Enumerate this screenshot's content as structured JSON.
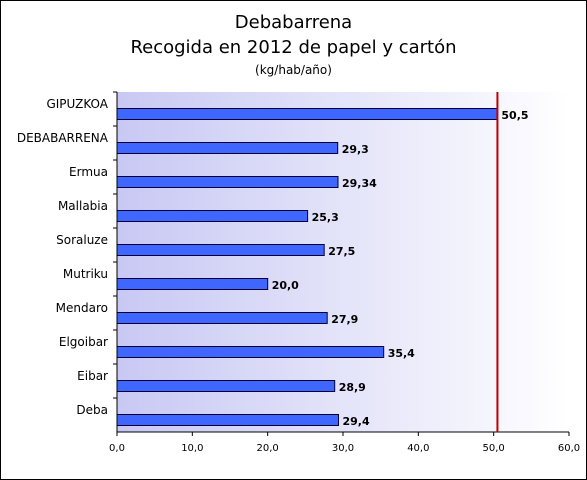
{
  "chart_data": {
    "type": "bar",
    "orientation": "horizontal",
    "title": "Debabarrena",
    "subtitle": "Recogida en 2012 de papel y cartón",
    "unit": "(kg/hab/año)",
    "categories": [
      "GIPUZKOA",
      "DEBABARRENA",
      "Ermua",
      "Mallabia",
      "Soraluze",
      "Mutriku",
      "Mendaro",
      "Elgoibar",
      "Eibar",
      "Deba"
    ],
    "values": [
      50.5,
      29.3,
      29.34,
      25.3,
      27.5,
      20.0,
      27.9,
      35.4,
      28.9,
      29.4
    ],
    "data_labels": [
      "50,5",
      "29,3",
      "29,34",
      "25,3",
      "27,5",
      "20,0",
      "27,9",
      "35,4",
      "28,9",
      "29,4"
    ],
    "xlim": [
      0,
      60
    ],
    "xticks": [
      "0,0",
      "10,0",
      "20,0",
      "30,0",
      "40,0",
      "50,0",
      "60,0"
    ],
    "reference_line": 50.5,
    "grid": false,
    "colors": {
      "bar": "#3f66ff",
      "bar_edge": "#000033",
      "reference_line": "#c00000",
      "plot_bg_left": "#c8c8f4",
      "plot_bg_right": "#ffffff"
    }
  }
}
